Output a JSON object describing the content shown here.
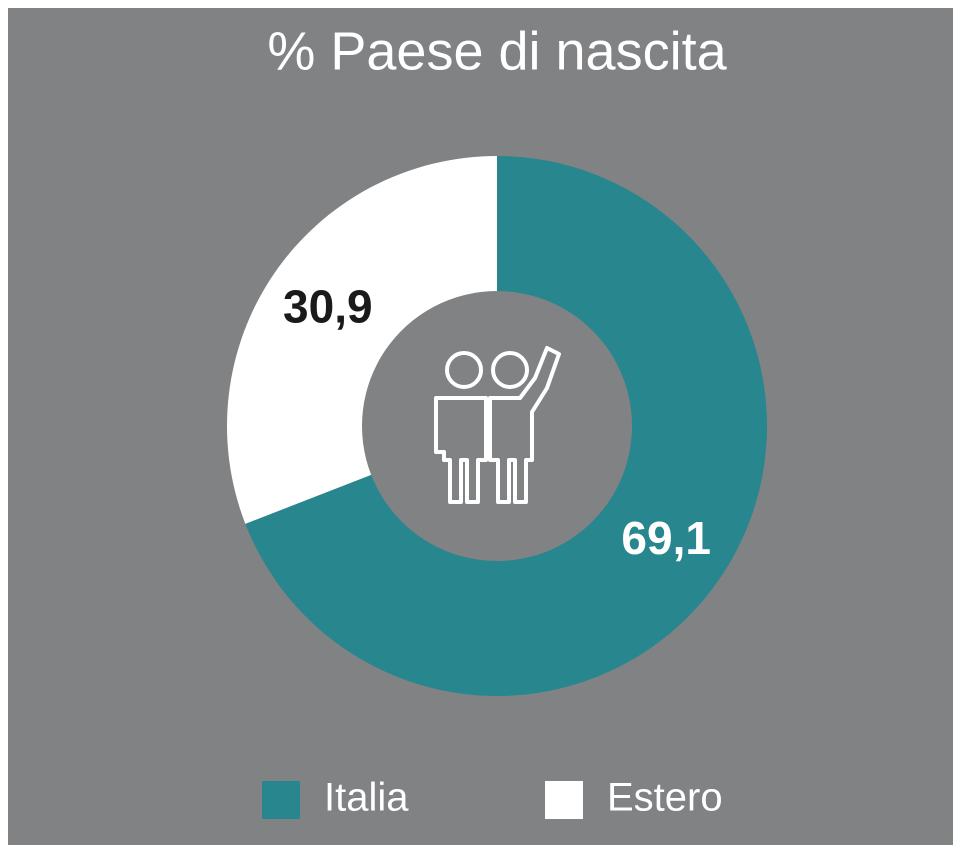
{
  "chart_data": {
    "type": "pie",
    "title": "% Paese di nascita",
    "categories": [
      "Italia",
      "Estero"
    ],
    "values": [
      69.1,
      30.9
    ],
    "value_labels": [
      "69,1",
      "30,9"
    ],
    "colors": [
      "#27868e",
      "#ffffff"
    ],
    "legend": "bottom"
  }
}
